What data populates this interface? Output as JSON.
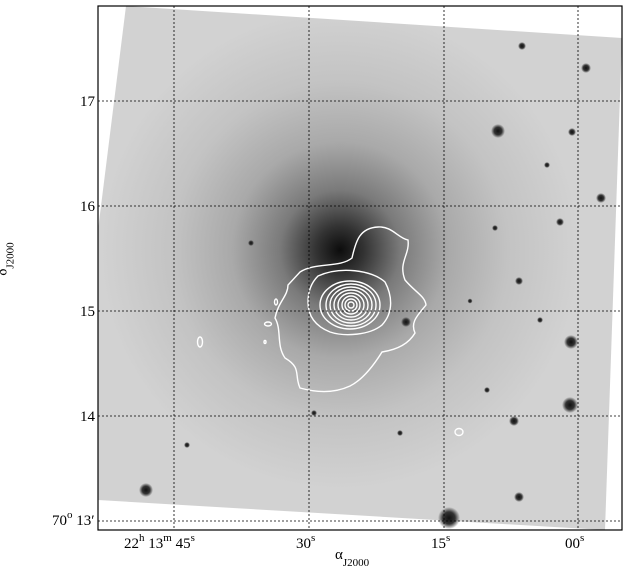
{
  "figure": {
    "y_ticks": [
      {
        "label": "17"
      },
      {
        "label": "16"
      },
      {
        "label": "15"
      },
      {
        "label": "14"
      }
    ],
    "y_corner": {
      "deg": "70",
      "deg_sym": "o",
      "minutes": "13",
      "min_sym": "′"
    },
    "x_ticks": {
      "first": {
        "h": "22",
        "h_sym": "h",
        "m": "13",
        "m_sym": "m",
        "s": "45",
        "s_sym": "s"
      },
      "others": [
        {
          "s": "30",
          "s_sym": "s"
        },
        {
          "s": "15",
          "s_sym": "s"
        },
        {
          "s": "00",
          "s_sym": "s"
        }
      ]
    },
    "xlabel": {
      "symbol": "α",
      "sub": "J2000"
    },
    "ylabel": {
      "symbol": "δ",
      "sub": "J2000"
    },
    "colors": {
      "frame": "#000000",
      "image_gray": "#cfcfcf",
      "contour": "#ffffff",
      "grid": "#000000"
    }
  }
}
